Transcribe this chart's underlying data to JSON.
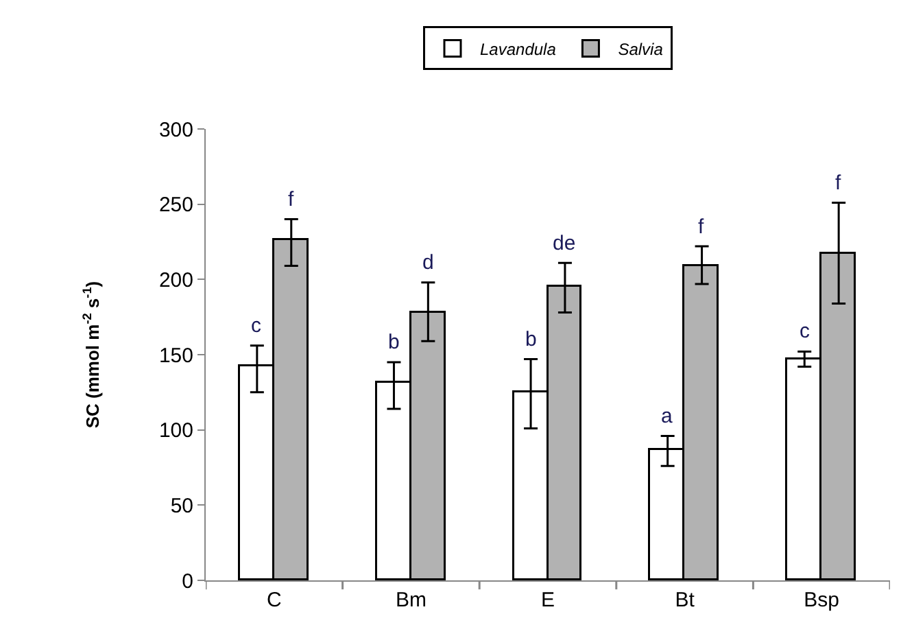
{
  "chart_data": {
    "type": "bar",
    "ylabel": "SC (mmol m$^{-2}$ s$^{-1}$)",
    "categories": [
      "C",
      "Bm",
      "E",
      "Bt",
      "Bsp"
    ],
    "series": [
      {
        "name": "Lavandula",
        "color": "#ffffff",
        "values": [
          142,
          131,
          125,
          87,
          147
        ],
        "errors": [
          [
            125,
            156
          ],
          [
            114,
            145
          ],
          [
            101,
            147
          ],
          [
            76,
            96
          ],
          [
            142,
            152
          ]
        ]
      },
      {
        "name": "Salvia",
        "color": "#b2b2b2",
        "values": [
          226,
          178,
          195,
          209,
          217
        ],
        "errors": [
          [
            209,
            240
          ],
          [
            159,
            198
          ],
          [
            178,
            211
          ],
          [
            197,
            222
          ],
          [
            184,
            251
          ]
        ]
      }
    ],
    "ylim": [
      0,
      300
    ],
    "yticks": [
      0,
      50,
      100,
      150,
      200,
      250,
      300
    ],
    "legend": "top",
    "annotations": [
      {
        "text": "c",
        "x": "C",
        "y": 142
      },
      {
        "text": "f",
        "x": "C",
        "y": 226
      },
      {
        "text": "b",
        "x": "Bm",
        "y": 131
      },
      {
        "text": "d",
        "x": "Bm",
        "y": 178
      },
      {
        "text": "b",
        "x": "E",
        "y": 125
      },
      {
        "text": "de",
        "x": "E",
        "y": 195
      },
      {
        "text": "a",
        "x": "Bt",
        "y": 87
      },
      {
        "text": "f",
        "x": "Bt",
        "y": 209
      },
      {
        "text": "c",
        "x": "Bsp",
        "y": 147
      },
      {
        "text": "f",
        "x": "Bsp",
        "y": 217
      }
    ]
  }
}
